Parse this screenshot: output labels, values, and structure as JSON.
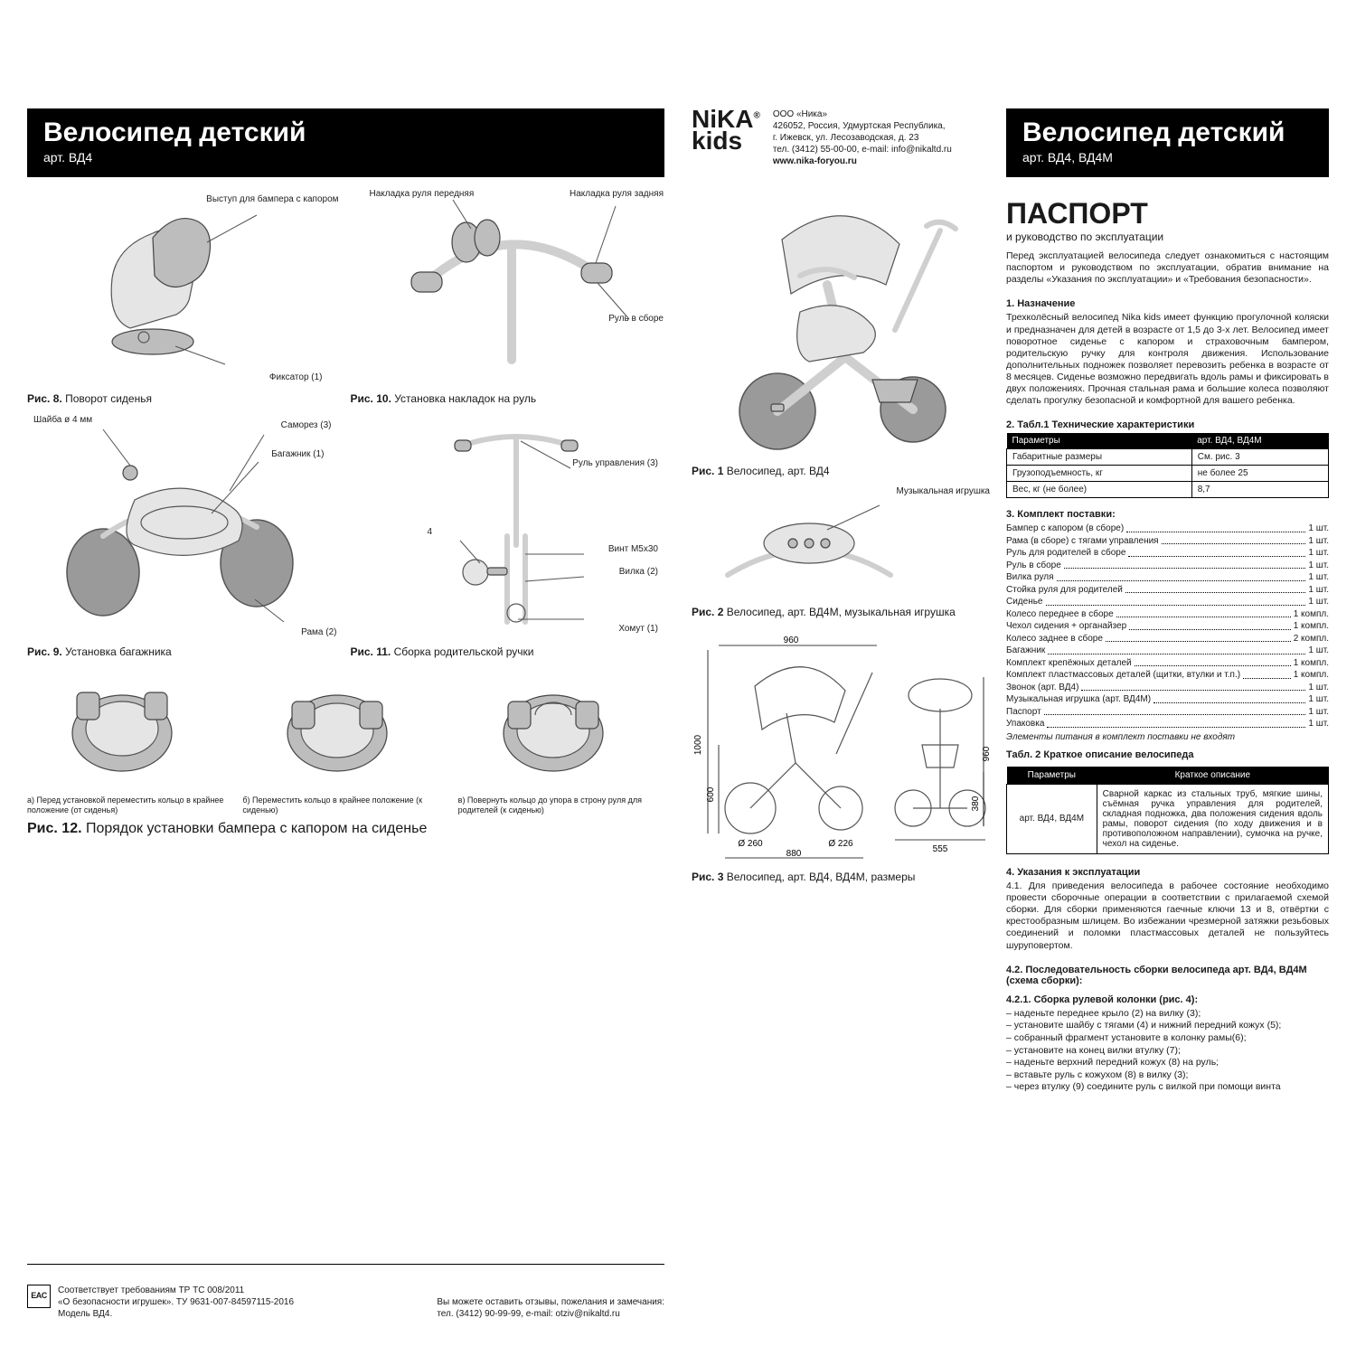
{
  "left": {
    "header": {
      "title": "Велосипед детский",
      "sub": "арт. ВД4"
    },
    "fig8": {
      "cap_b": "Рис. 8.",
      "cap": " Поворот сиденья",
      "callouts": {
        "a": "Выступ для бампера с капором",
        "b": "Фиксатор (1)"
      }
    },
    "fig10": {
      "cap_b": "Рис. 10.",
      "cap": " Установка накладок на руль",
      "callouts": {
        "a": "Накладка руля передняя",
        "b": "Накладка руля задняя",
        "c": "Руль в сборе"
      }
    },
    "fig9": {
      "cap_b": "Рис. 9.",
      "cap": " Установка багажника",
      "callouts": {
        "a": "Шайба ø 4 мм",
        "b": "Саморез (3)",
        "c": "Багажник (1)",
        "d": "Рама (2)"
      }
    },
    "fig11": {
      "cap_b": "Рис. 11.",
      "cap": " Сборка родительской ручки",
      "callouts": {
        "a": "Руль управления (3)",
        "b": "Винт М5х30",
        "c": "Вилка (2)",
        "d": "Хомут (1)",
        "e": "4"
      }
    },
    "fig12": {
      "cap_b": "Рис. 12.",
      "cap": " Порядок установки бампера с капором на сиденье",
      "items": [
        "а) Перед установкой переместить кольцо в крайнее положение (от сиденья)",
        "б) Переместить кольцо в крайнее положение (к сиденью)",
        "в) Повернуть кольцо до упора в строну руля для родителей (к сиденью)"
      ]
    },
    "compliance": {
      "mark": "EAC",
      "lines": [
        "Соответствует требованиям ТР ТС 008/2011",
        "«О безопасности игрушек». ТУ 9631-007-84597115-2016",
        "Модель ВД4."
      ]
    },
    "feedback": {
      "l1": "Вы можете оставить отзывы, пожелания и замечания:",
      "l2": "тел. (3412) 90-99-99, e-mail: otziv@nikaltd.ru"
    }
  },
  "right": {
    "brand": {
      "logo1": "NiKA",
      "logo2": "kids",
      "reg": "®",
      "info": [
        "ООО «Ника»",
        "426052, Россия, Удмуртская Республика,",
        "г. Ижевск, ул. Лесозаводская, д. 23",
        "тел. (3412) 55-00-00,  e-mail: info@nikaltd.ru"
      ],
      "site": "www.nika-foryou.ru"
    },
    "header": {
      "title": "Велосипед детский",
      "sub": "арт. ВД4, ВД4М"
    },
    "passport": {
      "title": "ПАСПОРТ",
      "sub": "и руководство по эксплуатации"
    },
    "intro": "Перед эксплуатацией велосипеда следует ознакомиться с настоящим паспортом и руководством по эксплуатации, обратив внимание на разделы «Указания по эксплуатации» и «Требования безопасности».",
    "sec1_h": "1. Назначение",
    "sec1": "Трехколёсный велосипед Nika kids имеет функцию прогулочной коляски и предназначен для детей в возрасте от 1,5 до 3-х лет. Велосипед имеет поворотное сиденье с капором и страховочным бампером, родительскую ручку для контроля движения. Использование дополнительных подножек позволяет перевозить ребенка в возрасте от 8 месяцев. Сиденье возможно передвигать вдоль рамы и фиксировать в двух положениях. Прочная стальная рама и большие колеса позволяют сделать прогулку безопасной и комфортной для вашего ребенка.",
    "tab1_h": "2. Табл.1 Технические характеристики",
    "tab1": {
      "head": [
        "Параметры",
        "арт. ВД4, ВД4М"
      ],
      "rows": [
        [
          "Габаритные размеры",
          "См. рис. 3"
        ],
        [
          "Грузоподъемность, кг",
          "не более 25"
        ],
        [
          "Вес, кг (не более)",
          "8,7"
        ]
      ]
    },
    "sec3_h": "3. Комплект поставки:",
    "supply": [
      [
        "Бампер с капором (в сборе)",
        "1 шт."
      ],
      [
        "Рама (в сборе) с тягами управления",
        "1 шт."
      ],
      [
        "Руль для родителей в сборе",
        "1 шт."
      ],
      [
        "Руль в сборе",
        "1 шт."
      ],
      [
        "Вилка руля",
        "1 шт."
      ],
      [
        "Стойка руля для родителей",
        "1 шт."
      ],
      [
        "Сиденье",
        "1 шт."
      ],
      [
        "Колесо переднее в сборе",
        "1 компл."
      ],
      [
        "Чехол сидения + органайзер",
        "1 компл."
      ],
      [
        "Колесо заднее в сборе",
        "2 компл."
      ],
      [
        "Багажник",
        "1 шт."
      ],
      [
        "Комплект крепёжных деталей",
        "1 компл."
      ],
      [
        "Комплект пластмассовых деталей (щитки, втулки и т.п.)",
        "1 компл."
      ],
      [
        "Звонок (арт. ВД4)",
        "1 шт."
      ],
      [
        "Музыкальная игрушка (арт. ВД4М)",
        "1 шт."
      ],
      [
        "Паспорт",
        "1 шт."
      ],
      [
        "Упаковка",
        "1 шт."
      ]
    ],
    "supply_note": "Элементы питания в комплект поставки не входят",
    "tab2_h": "Табл. 2 Краткое описание велосипеда",
    "tab2_head": [
      "Параметры",
      "Краткое описание"
    ],
    "tab2_param": "арт. ВД4, ВД4М",
    "tab2_desc": "Сварной каркас из стальных труб, мягкие шины, съёмная ручка управления для родителей, складная подножка, два положения сидения вдоль рамы, поворот сидения (по ходу движения и в противоположном направлении), сумочка на ручке, чехол на сиденье.",
    "sec4_h": "4. Указания к эксплуатации",
    "sec41": "4.1. Для приведения велосипеда в рабочее состояние необходимо провести сборочные операции в соответствии с прилагаемой схемой сборки. Для сборки применяются гаечные ключи 13 и 8, отвёртки с крестообразным шлицем. Во избежании чрезмерной затяжки резьбовых соединений и поломки пластмассовых деталей не пользуйтесь шуруповертом.",
    "sec42_h": "4.2. Последовательность сборки велосипеда арт. ВД4, ВД4М (схема сборки):",
    "sec421_h": "4.2.1. Сборка рулевой колонки (рис. 4):",
    "steps": [
      "– наденьте переднее крыло (2) на вилку (3);",
      "– установите шайбу с тягами (4) и нижний передний кожух (5);",
      "– собранный фрагмент установите в колонку рамы(6);",
      "– установите на конец вилки втулку (7);",
      "– наденьте верхний передний кожух (8) на руль;",
      "– вставьте руль с кожухом (8) в вилку (3);",
      "– через втулку (9) соедините руль с вилкой при помощи винта"
    ],
    "fig1_cap_b": "Рис. 1",
    "fig1_cap": " Велосипед, арт. ВД4",
    "fig2_toy": "Музыкальная игрушка",
    "fig2_cap_b": "Рис. 2",
    "fig2_cap": " Велосипед, арт. ВД4М, музыкальная игрушка",
    "fig3_cap_b": "Рис. 3",
    "fig3_cap": " Велосипед, арт. ВД4, ВД4М, размеры",
    "dims": {
      "w_top": "960",
      "h_left": "1000",
      "h_seat": "600",
      "wheel_front": "Ø 260",
      "wheel_rear": "Ø 226",
      "base": "880",
      "rear_h": "960",
      "rear_low": "380",
      "rear_w": "555"
    }
  },
  "colors": {
    "ink": "#1a1a1a",
    "bar": "#000000",
    "paper": "#ffffff",
    "shade": "#e5e5e5",
    "shade_dk": "#bdbdbd",
    "wheel": "#9a9a9a"
  }
}
